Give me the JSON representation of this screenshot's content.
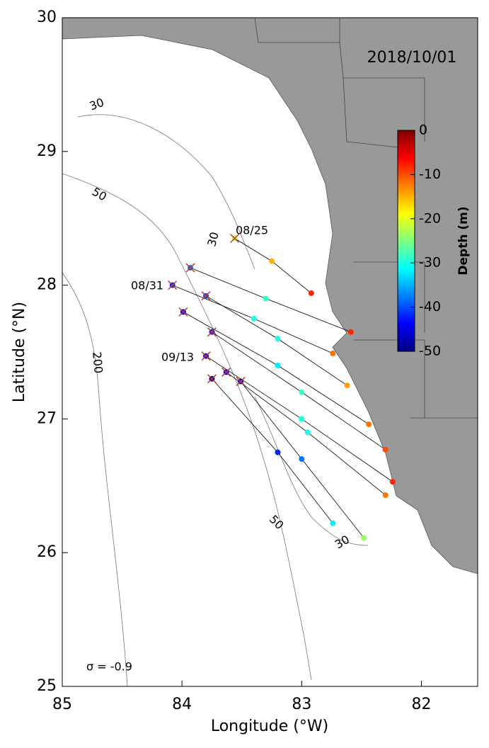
{
  "chart_data": {
    "type": "map",
    "title": "2018/10/01",
    "x_label": "Longitude (°W)",
    "y_label": "Latitude (°N)",
    "xlim": [
      85,
      81.53
    ],
    "ylim": [
      25,
      30
    ],
    "xticks": [
      85,
      84,
      83,
      82
    ],
    "yticks": [
      25,
      26,
      27,
      28,
      29,
      30
    ],
    "colorbar": {
      "label": "Depth (m)",
      "clim": [
        -50,
        0
      ],
      "ticks": [
        0,
        -10,
        -20,
        -30,
        -40,
        -50
      ]
    },
    "annotations": [
      "08/25",
      "08/31",
      "09/13",
      "σ = -0.9"
    ],
    "contour_labels": [
      "30",
      "50",
      "200",
      "30",
      "50",
      "30"
    ],
    "tracks": [
      {
        "lon": [
          83.56,
          83.25,
          82.92
        ],
        "lat": [
          28.35,
          28.18,
          27.94
        ],
        "depth": [
          -22,
          -15,
          -8
        ]
      },
      {
        "lon": [
          83.93,
          83.3,
          82.59
        ],
        "lat": [
          28.13,
          27.9,
          27.65
        ],
        "depth": [
          -38,
          -28,
          -8
        ]
      },
      {
        "lon": [
          84.08,
          83.4,
          82.74
        ],
        "lat": [
          28.0,
          27.75,
          27.49
        ],
        "depth": [
          -42,
          -30,
          -12
        ]
      },
      {
        "lon": [
          83.8,
          83.2,
          82.62
        ],
        "lat": [
          27.92,
          27.6,
          27.25
        ],
        "depth": [
          -40,
          -30,
          -14
        ]
      },
      {
        "lon": [
          83.99,
          83.2,
          82.44
        ],
        "lat": [
          27.8,
          27.4,
          26.96
        ],
        "depth": [
          -44,
          -32,
          -12
        ]
      },
      {
        "lon": [
          83.75,
          83.0,
          82.3
        ],
        "lat": [
          27.65,
          27.2,
          26.77
        ],
        "depth": [
          -42,
          -28,
          -10
        ]
      },
      {
        "lon": [
          83.8,
          83.0,
          82.24
        ],
        "lat": [
          27.47,
          27.0,
          26.53
        ],
        "depth": [
          -45,
          -30,
          -8
        ]
      },
      {
        "lon": [
          83.63,
          82.95,
          82.3
        ],
        "lat": [
          27.35,
          26.9,
          26.43
        ],
        "depth": [
          -44,
          -30,
          -12
        ]
      },
      {
        "lon": [
          83.51,
          83.0,
          82.48
        ],
        "lat": [
          27.28,
          26.7,
          26.11
        ],
        "depth": [
          -46,
          -38,
          -24
        ]
      },
      {
        "lon": [
          83.75,
          83.2,
          82.74
        ],
        "lat": [
          27.3,
          26.75,
          26.22
        ],
        "depth": [
          -48,
          -42,
          -32
        ]
      }
    ]
  }
}
